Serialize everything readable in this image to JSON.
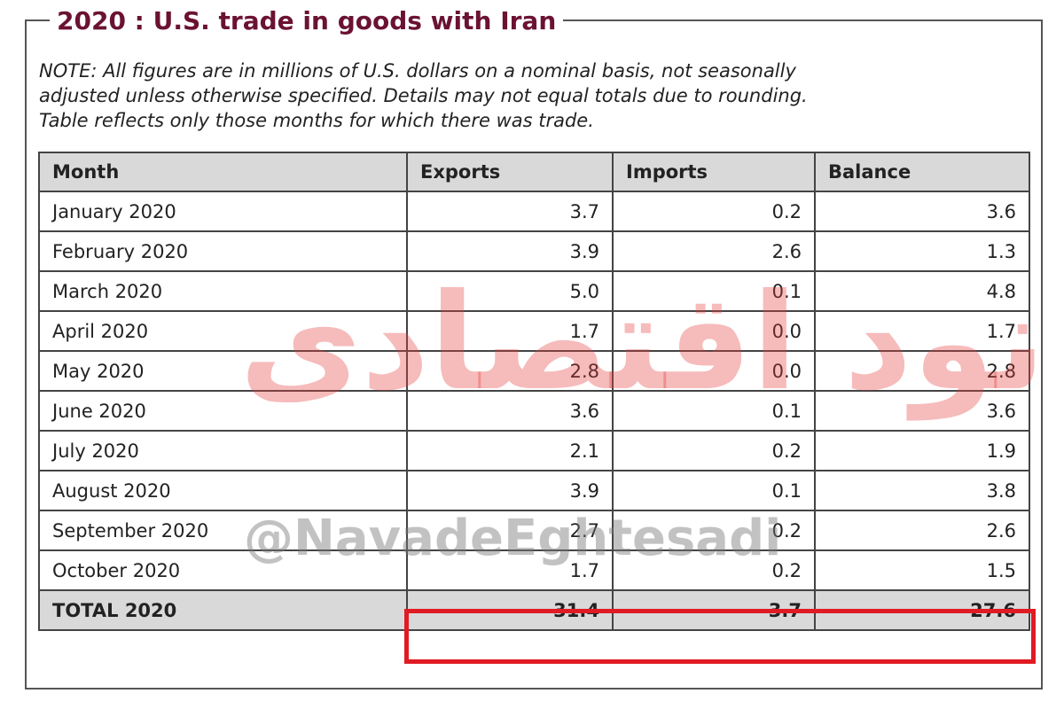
{
  "header": {
    "title": "2020 : U.S. trade in goods with Iran"
  },
  "note": [
    "NOTE: All figures are in millions of U.S. dollars on a nominal basis, not seasonally",
    "adjusted unless otherwise specified. Details may not equal totals due to rounding.",
    "Table reflects only those months for which there was trade."
  ],
  "table": {
    "columns": [
      "Month",
      "Exports",
      "Imports",
      "Balance"
    ],
    "rows": [
      [
        "January 2020",
        "3.7",
        "0.2",
        "3.6"
      ],
      [
        "February 2020",
        "3.9",
        "2.6",
        "1.3"
      ],
      [
        "March 2020",
        "5.0",
        "0.1",
        "4.8"
      ],
      [
        "April 2020",
        "1.7",
        "0.0",
        "1.7"
      ],
      [
        "May 2020",
        "2.8",
        "0.0",
        "2.8"
      ],
      [
        "June 2020",
        "3.6",
        "0.1",
        "3.6"
      ],
      [
        "July 2020",
        "2.1",
        "0.2",
        "1.9"
      ],
      [
        "August 2020",
        "3.9",
        "0.1",
        "3.8"
      ],
      [
        "September 2020",
        "2.7",
        "0.2",
        "2.6"
      ],
      [
        "October 2020",
        "1.7",
        "0.2",
        "1.5"
      ]
    ],
    "total": [
      "TOTAL 2020",
      "31.4",
      "3.7",
      "27.6"
    ]
  },
  "watermark": {
    "logo": "نود اقتصادی",
    "handle": "@NavadeEghtesadi"
  }
}
